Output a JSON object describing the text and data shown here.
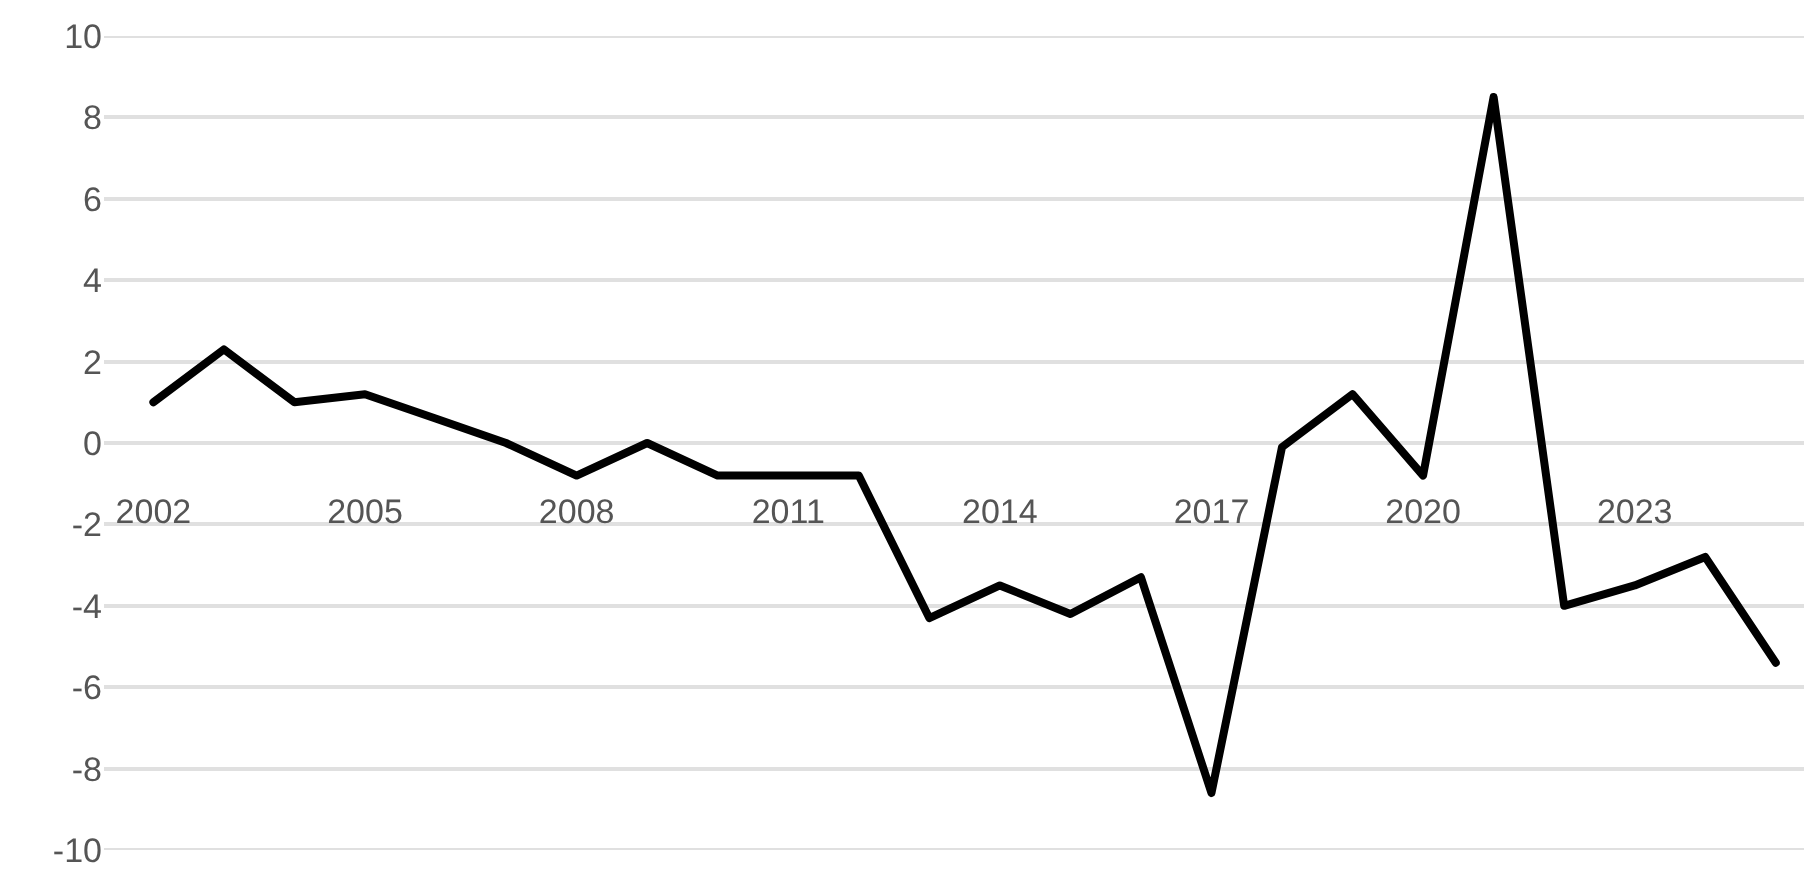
{
  "chart_data": {
    "type": "line",
    "x": [
      2002,
      2003,
      2004,
      2005,
      2006,
      2007,
      2008,
      2009,
      2010,
      2011,
      2012,
      2013,
      2014,
      2015,
      2016,
      2017,
      2018,
      2019,
      2020,
      2021,
      2022,
      2023,
      2024,
      2025
    ],
    "series": [
      {
        "color": "#000000",
        "values": [
          1.0,
          2.3,
          1.0,
          1.2,
          0.6,
          0.0,
          -0.8,
          0.0,
          -0.8,
          -0.8,
          -0.8,
          -4.3,
          -3.5,
          -4.2,
          -3.3,
          -8.6,
          -0.1,
          1.2,
          -0.8,
          8.5,
          -4.0,
          -3.5,
          -2.8,
          -5.4
        ]
      }
    ],
    "xlim": [
      2001.3,
      2025.4
    ],
    "xticks": [
      2002,
      2005,
      2008,
      2011,
      2014,
      2017,
      2020,
      2023
    ],
    "ylim": [
      -10,
      10
    ],
    "yticks": [
      -10,
      -8,
      -6,
      -4,
      -2,
      0,
      2,
      4,
      6,
      8,
      10
    ],
    "grid": "y",
    "marker": "none",
    "line_style": "solid"
  }
}
